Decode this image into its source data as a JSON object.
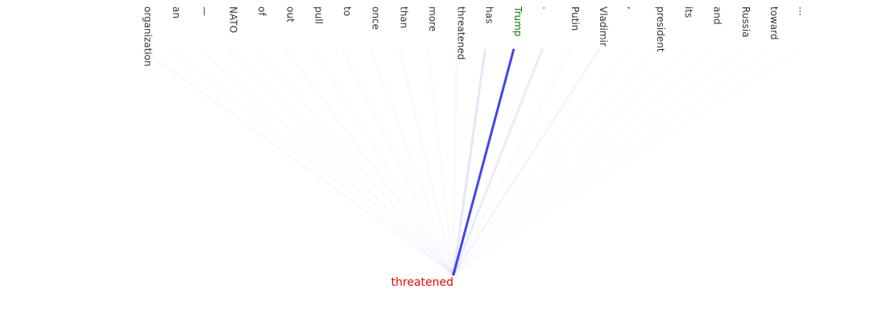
{
  "query": {
    "text": "threatened",
    "color": "#ff0000"
  },
  "line_color": "#3030ee",
  "highlight": {
    "index": 13,
    "color": "#008000"
  },
  "tokens": [
    {
      "text": "organization",
      "weight": 0.03
    },
    {
      "text": "an",
      "weight": 0.02
    },
    {
      "text": "—",
      "weight": 0.02
    },
    {
      "text": "NATO",
      "weight": 0.03
    },
    {
      "text": "of",
      "weight": 0.02
    },
    {
      "text": "out",
      "weight": 0.03
    },
    {
      "text": "pull",
      "weight": 0.02
    },
    {
      "text": "to",
      "weight": 0.02
    },
    {
      "text": "once",
      "weight": 0.02
    },
    {
      "text": "than",
      "weight": 0.03
    },
    {
      "text": "more",
      "weight": 0.02
    },
    {
      "text": "threatened",
      "weight": 0.03
    },
    {
      "text": "has",
      "weight": 0.12
    },
    {
      "text": "Trump",
      "weight": 0.9
    },
    {
      "text": ".",
      "weight": 0.1
    },
    {
      "text": "Putin",
      "weight": 0.02
    },
    {
      "text": "Vladimir",
      "weight": 0.05
    },
    {
      "text": ",",
      "weight": 0.01
    },
    {
      "text": "president",
      "weight": 0.01
    },
    {
      "text": "its",
      "weight": 0.01
    },
    {
      "text": "and",
      "weight": 0.01
    },
    {
      "text": "Russia",
      "weight": 0.01
    },
    {
      "text": "toward",
      "weight": 0.01
    },
    {
      "text": "...",
      "weight": 0.01
    }
  ]
}
